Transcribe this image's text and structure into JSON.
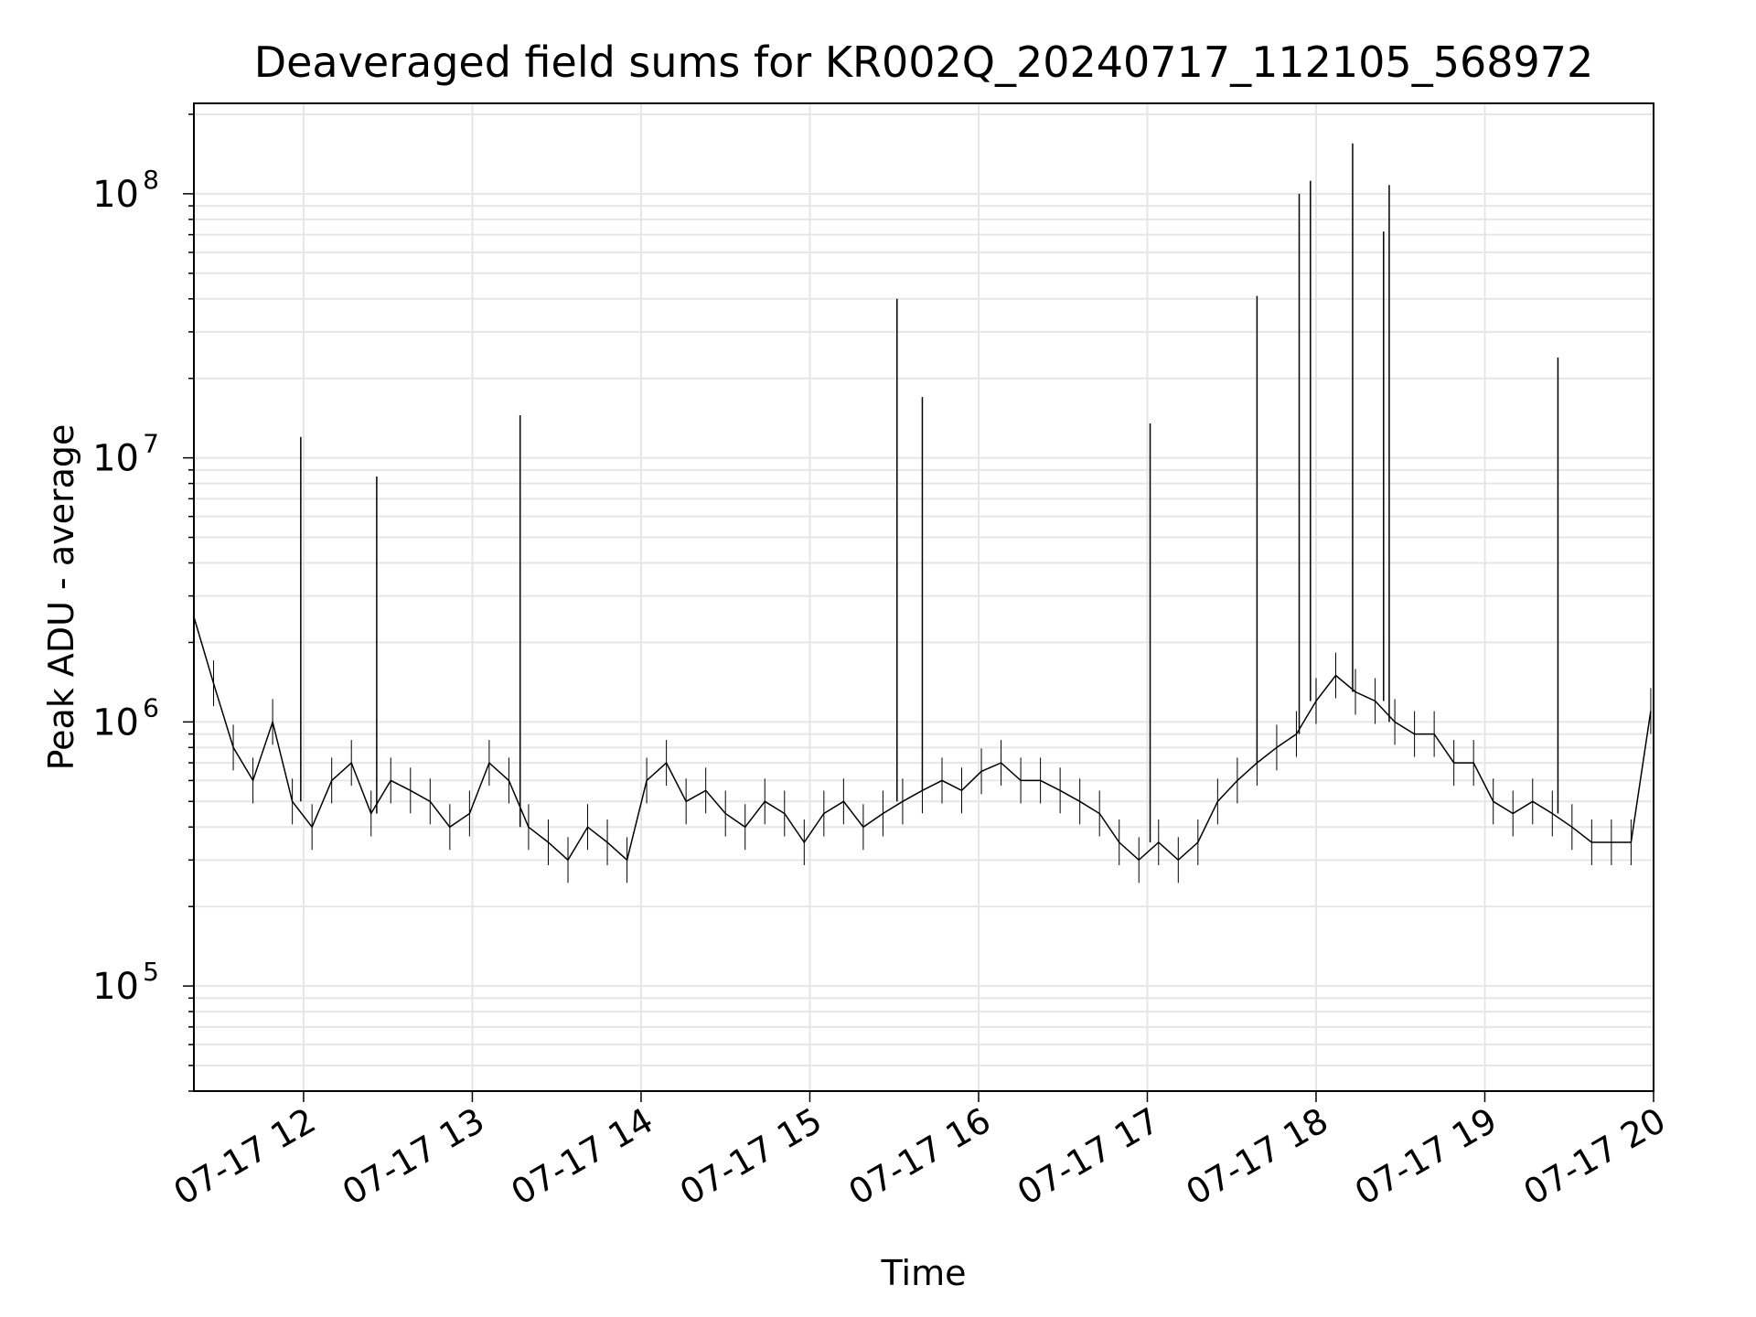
{
  "chart_data": {
    "type": "line",
    "title": "Deaveraged field sums for KR002Q_20240717_112105_568972",
    "xlabel": "Time",
    "ylabel": "Peak ADU - average",
    "yscale": "log",
    "xlim": [
      "2024-07-17 11:21",
      "2024-07-17 20:00"
    ],
    "ylim": [
      40000,
      220000000
    ],
    "grid": true,
    "legend": "none",
    "line_color": "#000000",
    "x_ticks": [
      "07-17 12",
      "07-17 13",
      "07-17 14",
      "07-17 15",
      "07-17 16",
      "07-17 17",
      "07-17 18",
      "07-17 19",
      "07-17 20"
    ],
    "y_ticks": [
      {
        "base": "10",
        "exp": "5",
        "value": 100000
      },
      {
        "base": "10",
        "exp": "6",
        "value": 1000000
      },
      {
        "base": "10",
        "exp": "7",
        "value": 10000000
      },
      {
        "base": "10",
        "exp": "8",
        "value": 100000000
      }
    ],
    "series": [
      {
        "x": [
          "2024-07-17 11:21",
          "2024-07-17 11:28",
          "2024-07-17 11:35",
          "2024-07-17 11:42",
          "2024-07-17 11:49",
          "2024-07-17 11:56",
          "2024-07-17 12:03",
          "2024-07-17 12:10",
          "2024-07-17 12:17",
          "2024-07-17 12:24",
          "2024-07-17 12:31",
          "2024-07-17 12:38",
          "2024-07-17 12:45",
          "2024-07-17 12:52",
          "2024-07-17 12:59",
          "2024-07-17 13:06",
          "2024-07-17 13:13",
          "2024-07-17 13:20",
          "2024-07-17 13:27",
          "2024-07-17 13:34",
          "2024-07-17 13:41",
          "2024-07-17 13:48",
          "2024-07-17 13:55",
          "2024-07-17 14:02",
          "2024-07-17 14:09",
          "2024-07-17 14:16",
          "2024-07-17 14:23",
          "2024-07-17 14:30",
          "2024-07-17 14:37",
          "2024-07-17 14:44",
          "2024-07-17 14:51",
          "2024-07-17 14:58",
          "2024-07-17 15:05",
          "2024-07-17 15:12",
          "2024-07-17 15:19",
          "2024-07-17 15:26",
          "2024-07-17 15:33",
          "2024-07-17 15:40",
          "2024-07-17 15:47",
          "2024-07-17 15:54",
          "2024-07-17 16:01",
          "2024-07-17 16:08",
          "2024-07-17 16:15",
          "2024-07-17 16:22",
          "2024-07-17 16:29",
          "2024-07-17 16:36",
          "2024-07-17 16:43",
          "2024-07-17 16:50",
          "2024-07-17 16:57",
          "2024-07-17 17:04",
          "2024-07-17 17:11",
          "2024-07-17 17:18",
          "2024-07-17 17:25",
          "2024-07-17 17:32",
          "2024-07-17 17:39",
          "2024-07-17 17:46",
          "2024-07-17 17:53",
          "2024-07-17 18:00",
          "2024-07-17 18:07",
          "2024-07-17 18:14",
          "2024-07-17 18:21",
          "2024-07-17 18:28",
          "2024-07-17 18:35",
          "2024-07-17 18:42",
          "2024-07-17 18:49",
          "2024-07-17 18:56",
          "2024-07-17 19:03",
          "2024-07-17 19:10",
          "2024-07-17 19:17",
          "2024-07-17 19:24",
          "2024-07-17 19:31",
          "2024-07-17 19:38",
          "2024-07-17 19:45",
          "2024-07-17 19:52",
          "2024-07-17 19:59"
        ],
        "y": [
          2500000,
          1400000,
          800000,
          600000,
          1000000,
          500000,
          400000,
          600000,
          700000,
          450000,
          600000,
          550000,
          500000,
          400000,
          450000,
          700000,
          600000,
          400000,
          350000,
          300000,
          400000,
          350000,
          300000,
          600000,
          700000,
          500000,
          550000,
          450000,
          400000,
          500000,
          450000,
          350000,
          450000,
          500000,
          400000,
          450000,
          500000,
          550000,
          600000,
          550000,
          650000,
          700000,
          600000,
          600000,
          550000,
          500000,
          450000,
          350000,
          300000,
          350000,
          300000,
          350000,
          500000,
          600000,
          700000,
          800000,
          900000,
          1200000,
          1500000,
          1300000,
          1200000,
          1000000,
          900000,
          900000,
          700000,
          700000,
          500000,
          450000,
          500000,
          450000,
          400000,
          350000,
          350000,
          350000,
          1100000
        ]
      }
    ],
    "spikes": [
      {
        "x": "2024-07-17 11:59",
        "y": 12000000
      },
      {
        "x": "2024-07-17 12:26",
        "y": 8500000
      },
      {
        "x": "2024-07-17 13:17",
        "y": 14500000
      },
      {
        "x": "2024-07-17 15:31",
        "y": 40000000
      },
      {
        "x": "2024-07-17 15:40",
        "y": 17000000
      },
      {
        "x": "2024-07-17 17:01",
        "y": 13500000
      },
      {
        "x": "2024-07-17 17:39",
        "y": 41000000
      },
      {
        "x": "2024-07-17 17:54",
        "y": 100000000
      },
      {
        "x": "2024-07-17 17:58",
        "y": 112000000
      },
      {
        "x": "2024-07-17 18:13",
        "y": 155000000
      },
      {
        "x": "2024-07-17 18:24",
        "y": 72000000
      },
      {
        "x": "2024-07-17 18:26",
        "y": 108000000
      },
      {
        "x": "2024-07-17 19:26",
        "y": 24000000
      }
    ]
  }
}
